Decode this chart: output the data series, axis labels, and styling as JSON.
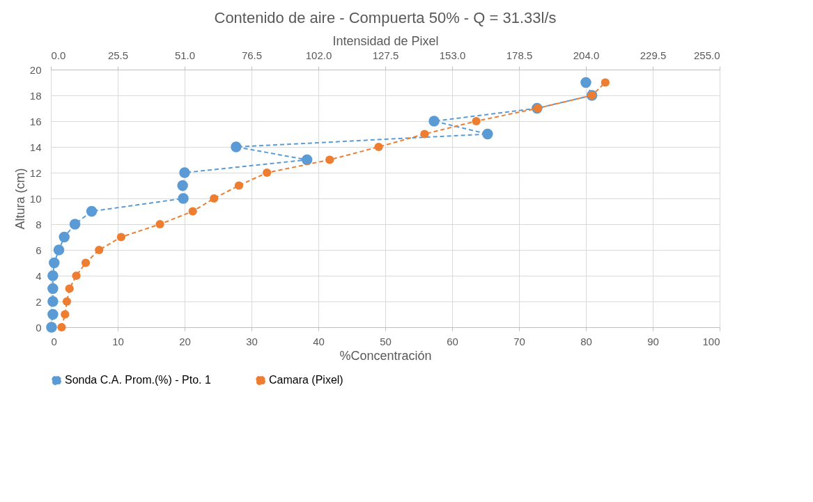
{
  "chart_data": {
    "type": "line",
    "title": "Contenido de aire - Compuerta 50% - Q = 31.33l/s",
    "xlabel": "%Concentración",
    "ylabel": "Altura (cm)",
    "x2label": "Intensidad de Pixel",
    "xlim": [
      0,
      100
    ],
    "xticks": [
      0,
      10,
      20,
      30,
      40,
      50,
      60,
      70,
      80,
      90,
      100
    ],
    "x2lim": [
      0,
      255
    ],
    "x2ticks": [
      {
        "value": 0,
        "label": "0.0"
      },
      25.5,
      {
        "value": 51,
        "label": "51.0"
      },
      76.5,
      {
        "value": 102,
        "label": "102.0"
      },
      127.5,
      {
        "value": 153,
        "label": "153.0"
      },
      178.5,
      {
        "value": 204,
        "label": "204.0"
      },
      229.5,
      {
        "value": 255,
        "label": "255.0"
      }
    ],
    "ylim": [
      0,
      20
    ],
    "yticks": [
      0,
      2,
      4,
      6,
      8,
      10,
      12,
      14,
      16,
      18,
      20
    ],
    "grid": true,
    "legend": "bottom",
    "marker": "circle",
    "line_style": "dashed",
    "series": [
      {
        "name": "Sonda C.A. Prom.(%) - Pto. 1",
        "color": "#5b9bd5",
        "x": [
          0.1,
          0.3,
          0.3,
          0.3,
          0.3,
          0.5,
          1.2,
          2.0,
          3.6,
          6.1,
          19.8,
          19.7,
          20.0,
          38.3,
          27.7,
          65.3,
          57.3,
          72.7,
          80.9,
          80.0
        ],
        "values": [
          0,
          1,
          2,
          3,
          4,
          5,
          6,
          7,
          8,
          9,
          10,
          11,
          12,
          13,
          14,
          15,
          16,
          17,
          18,
          19
        ]
      },
      {
        "name": "Camara (Pixel)",
        "color": "#ed7d31",
        "axis": "x2",
        "x": [
          4.1,
          5.4,
          6.1,
          7.1,
          9.7,
          13.3,
          18.4,
          26.8,
          41.6,
          54.1,
          62.2,
          71.7,
          82.4,
          106.3,
          125.0,
          142.5,
          162.2,
          185.6,
          206.3,
          211.4
        ],
        "values": [
          0,
          1,
          2,
          3,
          4,
          5,
          6,
          7,
          8,
          9,
          10,
          11,
          12,
          13,
          14,
          15,
          16,
          17,
          18,
          19
        ]
      }
    ]
  }
}
